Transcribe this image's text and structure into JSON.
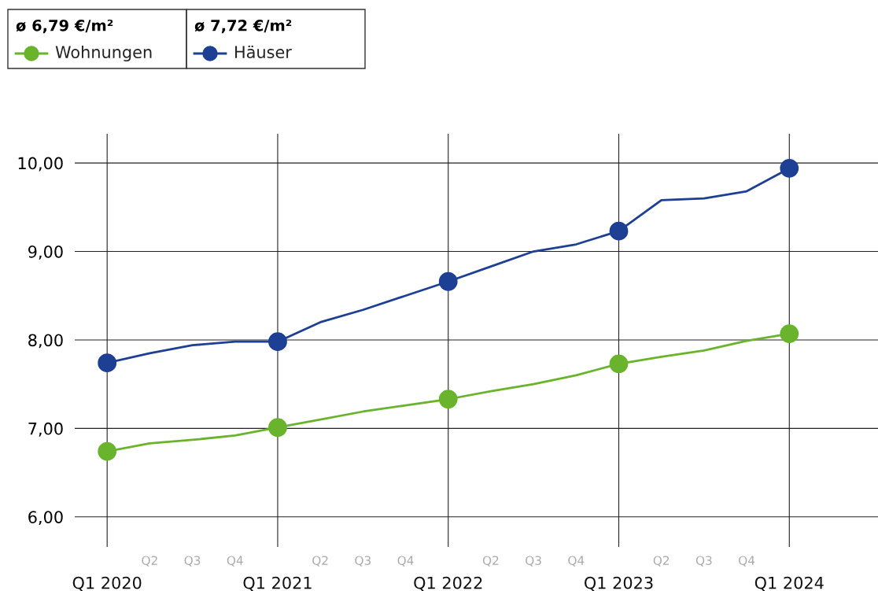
{
  "chart_data": {
    "type": "line",
    "categories": [
      "Q1 2020",
      "Q2",
      "Q3",
      "Q4",
      "Q1 2021",
      "Q2",
      "Q3",
      "Q4",
      "Q1 2022",
      "Q2",
      "Q3",
      "Q4",
      "Q1 2023",
      "Q2",
      "Q3",
      "Q4",
      "Q1 2024"
    ],
    "series": [
      {
        "name": "Wohnungen",
        "color": "#6ab42d",
        "values": [
          6.74,
          6.83,
          6.87,
          6.92,
          7.01,
          7.1,
          7.19,
          7.26,
          7.33,
          7.42,
          7.5,
          7.6,
          7.73,
          7.81,
          7.88,
          7.99,
          8.07
        ]
      },
      {
        "name": "Häuser",
        "color": "#1d3f94",
        "values": [
          7.74,
          7.85,
          7.94,
          7.98,
          7.98,
          8.2,
          8.34,
          8.5,
          8.66,
          8.83,
          9.0,
          9.08,
          9.23,
          9.58,
          9.6,
          9.68,
          9.94
        ]
      }
    ],
    "annotations": [
      "ø 6,79 €/m²",
      "ø 7,72 €/m²"
    ],
    "ylim": [
      5.66,
      10.33
    ],
    "yticks": [
      {
        "value": 6,
        "label": "6,00"
      },
      {
        "value": 7,
        "label": "7,00"
      },
      {
        "value": 8,
        "label": "8,00"
      },
      {
        "value": 9,
        "label": "9,00"
      },
      {
        "value": 10,
        "label": "10,00"
      }
    ],
    "grid": true,
    "legend": "top left",
    "line_style": "solid"
  }
}
